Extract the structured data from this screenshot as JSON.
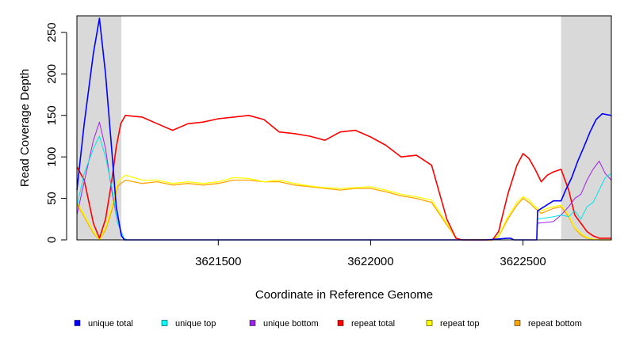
{
  "chart_data": {
    "type": "line",
    "xlabel": "Coordinate in Reference Genome",
    "ylabel": "Read Coverage Depth",
    "xlim": [
      3621036,
      3622790
    ],
    "ylim": [
      0,
      270
    ],
    "x_ticks": [
      3621500,
      3622000,
      3622500
    ],
    "y_ticks": [
      0,
      50,
      100,
      150,
      200,
      250
    ],
    "shaded_regions": [
      [
        3621036,
        3621182
      ],
      [
        3622625,
        3622790
      ]
    ],
    "series": [
      {
        "name": "unique total",
        "color": "#0000ff",
        "width": 1.6,
        "x": [
          3621036,
          3621060,
          3621090,
          3621110,
          3621130,
          3621150,
          3621165,
          3621182,
          3621192,
          3621300,
          3622300,
          3622380,
          3622450,
          3622460,
          3622470,
          3622500,
          3622545,
          3622548,
          3622600,
          3622625,
          3622640,
          3622660,
          3622680,
          3622700,
          3622720,
          3622740,
          3622760,
          3622790
        ],
        "values": [
          60,
          140,
          225,
          267,
          200,
          110,
          40,
          5,
          0,
          0,
          0,
          0,
          2,
          2,
          0,
          0,
          0,
          35,
          47,
          47,
          60,
          75,
          95,
          112,
          130,
          145,
          152,
          150
        ]
      },
      {
        "name": "unique top",
        "color": "#00e5e5",
        "width": 1,
        "x": [
          3621036,
          3621060,
          3621090,
          3621110,
          3621130,
          3621150,
          3621170,
          3621190,
          3621200,
          3622545,
          3622548,
          3622600,
          3622625,
          3622650,
          3622670,
          3622690,
          3622710,
          3622730,
          3622750,
          3622770,
          3622790
        ],
        "values": [
          40,
          80,
          110,
          125,
          100,
          65,
          20,
          2,
          0,
          0,
          25,
          28,
          30,
          28,
          35,
          25,
          40,
          45,
          60,
          75,
          80
        ]
      },
      {
        "name": "unique bottom",
        "color": "#a020f0",
        "width": 1,
        "x": [
          3621036,
          3621060,
          3621090,
          3621110,
          3621130,
          3621150,
          3621170,
          3621190,
          3621200,
          3622545,
          3622548,
          3622600,
          3622625,
          3622650,
          3622670,
          3622690,
          3622710,
          3622730,
          3622750,
          3622770,
          3622790
        ],
        "values": [
          30,
          70,
          120,
          142,
          110,
          60,
          20,
          2,
          0,
          0,
          20,
          22,
          30,
          40,
          50,
          55,
          72,
          85,
          95,
          80,
          72
        ]
      },
      {
        "name": "repeat total",
        "color": "#ff0000",
        "width": 1.6,
        "x": [
          3621036,
          3621060,
          3621090,
          3621110,
          3621130,
          3621150,
          3621165,
          3621180,
          3621195,
          3621250,
          3621300,
          3621350,
          3621400,
          3621450,
          3621500,
          3621550,
          3621600,
          3621650,
          3621700,
          3621750,
          3621800,
          3621850,
          3621900,
          3621950,
          3622000,
          3622050,
          3622100,
          3622150,
          3622200,
          3622250,
          3622280,
          3622300,
          3622350,
          3622400,
          3622420,
          3622450,
          3622480,
          3622500,
          3622520,
          3622540,
          3622560,
          3622580,
          3622600,
          3622625,
          3622650,
          3622670,
          3622690,
          3622710,
          3622730,
          3622750,
          3622770,
          3622790
        ],
        "values": [
          88,
          72,
          20,
          2,
          25,
          70,
          112,
          140,
          150,
          148,
          140,
          132,
          140,
          142,
          146,
          148,
          150,
          145,
          130,
          128,
          125,
          120,
          130,
          132,
          124,
          114,
          100,
          102,
          90,
          25,
          2,
          0,
          0,
          0,
          10,
          55,
          90,
          104,
          98,
          85,
          70,
          78,
          82,
          85,
          60,
          30,
          20,
          10,
          5,
          2,
          2,
          2
        ]
      },
      {
        "name": "repeat top",
        "color": "#ffff00",
        "width": 1.3,
        "x": [
          3621036,
          3621060,
          3621090,
          3621110,
          3621130,
          3621150,
          3621170,
          3621195,
          3621250,
          3621300,
          3621350,
          3621400,
          3621450,
          3621500,
          3621550,
          3621600,
          3621650,
          3621700,
          3621750,
          3621800,
          3621850,
          3621900,
          3621950,
          3622000,
          3622050,
          3622100,
          3622150,
          3622200,
          3622250,
          3622280,
          3622300,
          3622350,
          3622400,
          3622420,
          3622450,
          3622480,
          3622500,
          3622520,
          3622540,
          3622560,
          3622580,
          3622600,
          3622625,
          3622650,
          3622670,
          3622690,
          3622710,
          3622730,
          3622750,
          3622770,
          3622790
        ],
        "values": [
          45,
          30,
          10,
          0,
          15,
          40,
          70,
          78,
          72,
          72,
          68,
          70,
          68,
          70,
          75,
          74,
          70,
          72,
          68,
          65,
          63,
          62,
          63,
          64,
          60,
          55,
          52,
          48,
          20,
          2,
          0,
          0,
          0,
          5,
          28,
          45,
          52,
          48,
          40,
          35,
          38,
          40,
          42,
          30,
          15,
          8,
          3,
          1,
          0,
          0,
          0
        ]
      },
      {
        "name": "repeat bottom",
        "color": "#ffa500",
        "width": 1.3,
        "x": [
          3621036,
          3621060,
          3621090,
          3621110,
          3621130,
          3621150,
          3621170,
          3621195,
          3621250,
          3621300,
          3621350,
          3621400,
          3621450,
          3621500,
          3621550,
          3621600,
          3621650,
          3621700,
          3621750,
          3621800,
          3621850,
          3621900,
          3621950,
          3622000,
          3622050,
          3622100,
          3622150,
          3622200,
          3622250,
          3622280,
          3622300,
          3622350,
          3622400,
          3622420,
          3622450,
          3622480,
          3622500,
          3622520,
          3622540,
          3622560,
          3622580,
          3622600,
          3622625,
          3622650,
          3622670,
          3622690,
          3622710,
          3622730,
          3622750,
          3622770,
          3622790
        ],
        "values": [
          43,
          28,
          8,
          0,
          12,
          35,
          65,
          72,
          68,
          70,
          66,
          68,
          66,
          68,
          72,
          72,
          70,
          70,
          66,
          64,
          62,
          60,
          62,
          62,
          58,
          53,
          50,
          45,
          18,
          2,
          0,
          0,
          0,
          4,
          25,
          42,
          50,
          45,
          38,
          32,
          35,
          38,
          40,
          28,
          14,
          6,
          2,
          1,
          0,
          0,
          0
        ]
      }
    ],
    "legend": [
      {
        "label": "unique total",
        "color": "#0000ff"
      },
      {
        "label": "unique top",
        "color": "#00ffff"
      },
      {
        "label": "unique bottom",
        "color": "#a020f0"
      },
      {
        "label": "repeat total",
        "color": "#ff0000"
      },
      {
        "label": "repeat top",
        "color": "#ffff00"
      },
      {
        "label": "repeat bottom",
        "color": "#ffa500"
      }
    ]
  }
}
